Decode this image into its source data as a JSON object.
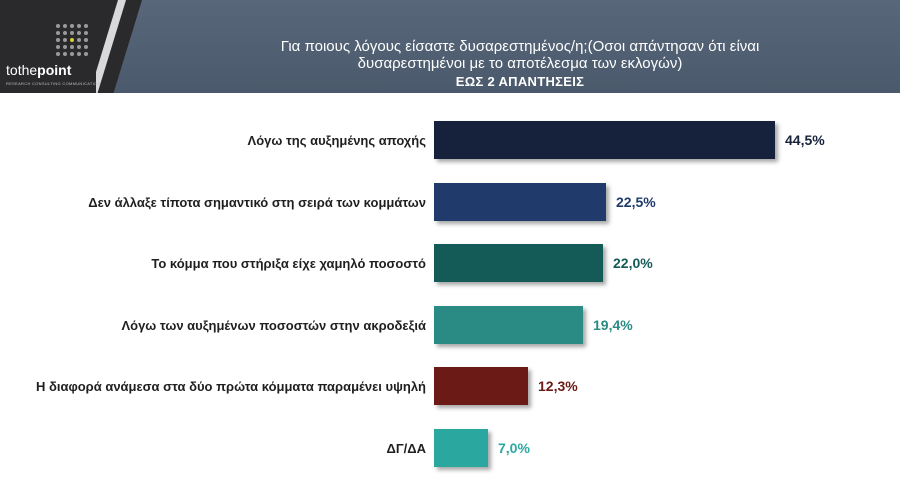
{
  "header": {
    "title_line1": "Για ποιους λόγους είσαστε δυσαρεστημένος/η;(Οσοι απάντησαν ότι είναι",
    "title_line2": "δυσαρεστημένοι με το αποτέλεσμα των εκλογών)",
    "subtitle": "ΕΩΣ 2 ΑΠΑΝΤΗΣΕΙΣ"
  },
  "logo": {
    "brand_to": "to",
    "brand_the": "the",
    "brand_point": "point",
    "tagline": "RESEARCH  CONSULTING  COMMUNICATION"
  },
  "chart_data": {
    "type": "bar",
    "orientation": "horizontal",
    "categories": [
      "Λόγω της αυξημένης αποχής",
      "Δεν άλλαξε τίποτα σημαντικό στη σειρά των κομμάτων",
      "Το κόμμα που στήριξα είχε χαμηλό ποσοστό",
      "Λόγω των αυξημένων ποσοστών στην ακροδεξιά",
      "Η διαφορά ανάμεσα στα δύο πρώτα κόμματα παραμένει υψηλή",
      "ΔΓ/ΔΑ"
    ],
    "values": [
      44.5,
      22.5,
      22.0,
      19.4,
      12.3,
      7.0
    ],
    "value_labels": [
      "44,5%",
      "22,5%",
      "22,0%",
      "19,4%",
      "12,3%",
      "7,0%"
    ],
    "colors": [
      "#16223b",
      "#1f3a6b",
      "#145a57",
      "#2a8a84",
      "#6b1a16",
      "#2aa89f"
    ],
    "label_colors": [
      "#16223b",
      "#1f3a6b",
      "#145a57",
      "#2a8a84",
      "#6b1a16",
      "#2aa89f"
    ],
    "xlim": [
      0,
      100
    ],
    "grid": false,
    "legend": "none"
  }
}
